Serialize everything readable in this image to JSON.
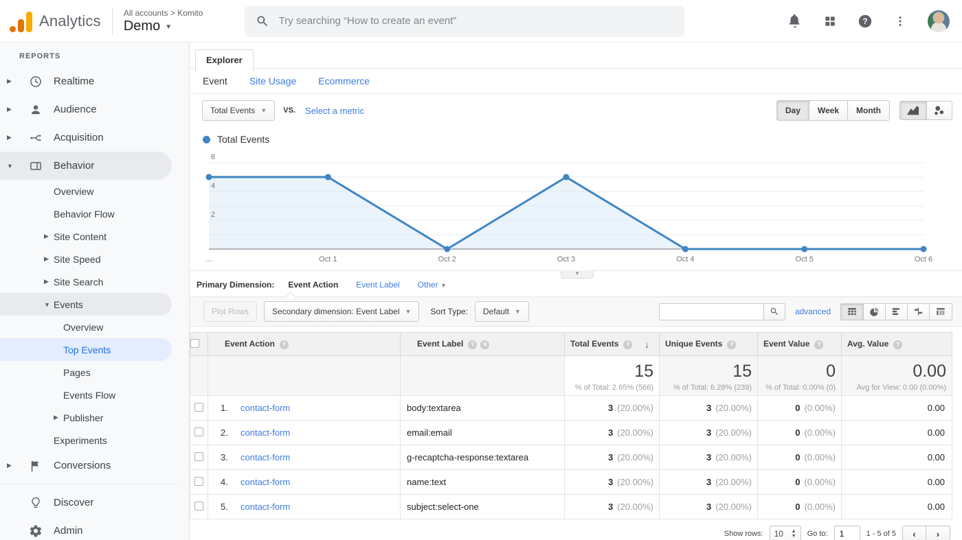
{
  "header": {
    "product": "Analytics",
    "breadcrumb": "All accounts > Komito",
    "account": "Demo",
    "search_placeholder": "Try searching “How to create an event”"
  },
  "sidebar": {
    "section_label": "REPORTS",
    "items": [
      {
        "label": "Realtime",
        "icon": "clock",
        "level": 0,
        "expand": "right"
      },
      {
        "label": "Audience",
        "icon": "person",
        "level": 0,
        "expand": "right"
      },
      {
        "label": "Acquisition",
        "icon": "share",
        "level": 0,
        "expand": "right"
      },
      {
        "label": "Behavior",
        "icon": "layout",
        "level": 0,
        "expand": "down",
        "pill": "gray"
      },
      {
        "label": "Overview",
        "level": 1
      },
      {
        "label": "Behavior Flow",
        "level": 1
      },
      {
        "label": "Site Content",
        "level": 1,
        "expand": "right"
      },
      {
        "label": "Site Speed",
        "level": 1,
        "expand": "right"
      },
      {
        "label": "Site Search",
        "level": 1,
        "expand": "right"
      },
      {
        "label": "Events",
        "level": 1,
        "expand": "down",
        "pill": "gray"
      },
      {
        "label": "Overview",
        "level": 2
      },
      {
        "label": "Top Events",
        "level": 2,
        "pill": "blue"
      },
      {
        "label": "Pages",
        "level": 2
      },
      {
        "label": "Events Flow",
        "level": 2
      },
      {
        "label": "Publisher",
        "level": 2,
        "expand": "right"
      },
      {
        "label": "Experiments",
        "level": 1
      },
      {
        "label": "Conversions",
        "icon": "flag",
        "level": 0,
        "expand": "right"
      },
      {
        "divider": true
      },
      {
        "label": "Discover",
        "icon": "bulb",
        "level": 0
      },
      {
        "label": "Admin",
        "icon": "gear",
        "level": 0
      }
    ]
  },
  "tabs": {
    "explorer": "Explorer"
  },
  "subnav": {
    "event": "Event",
    "site_usage": "Site Usage",
    "ecommerce": "Ecommerce"
  },
  "metric_bar": {
    "metric": "Total Events",
    "vs_label": "VS.",
    "select_metric": "Select a metric",
    "granularity": {
      "day": "Day",
      "week": "Week",
      "month": "Month",
      "active": "Day"
    }
  },
  "chart_data": {
    "type": "line",
    "legend": "Total Events",
    "x": [
      "...",
      "Oct 1",
      "Oct 2",
      "Oct 3",
      "Oct 4",
      "Oct 5",
      "Oct 6"
    ],
    "values": [
      5,
      5,
      0,
      5,
      0,
      0,
      0
    ],
    "yticks": [
      2,
      4,
      6
    ],
    "ylim": [
      0,
      6.67
    ],
    "grid": true,
    "legend_position": "top-left",
    "line_color": "#3f84c5",
    "area_color": "#dbe9f7"
  },
  "dimension_bar": {
    "label": "Primary Dimension:",
    "active": "Event Action",
    "link1": "Event Label",
    "link2": "Other"
  },
  "toolbar": {
    "plot_rows": "Plot Rows",
    "secondary_dimension": "Secondary dimension: Event Label",
    "sort_type_label": "Sort Type:",
    "sort_type": "Default",
    "search_value": "",
    "advanced": "advanced"
  },
  "table": {
    "columns": {
      "action": "Event Action",
      "label": "Event Label",
      "total": "Total Events",
      "unique": "Unique Events",
      "value": "Event Value",
      "avg": "Avg. Value"
    },
    "totals": {
      "total": {
        "value": "15",
        "note": "% of Total: 2.65% (566)"
      },
      "unique": {
        "value": "15",
        "note": "% of Total: 6.28% (239)"
      },
      "value": {
        "value": "0",
        "note": "% of Total: 0.00% (0)"
      },
      "avg": {
        "value": "0.00",
        "note": "Avg for View: 0.00 (0.00%)"
      }
    },
    "rows": [
      {
        "rank": "1.",
        "action": "contact-form",
        "label": "body:textarea",
        "total": "3",
        "total_pct": "(20.00%)",
        "unique": "3",
        "unique_pct": "(20.00%)",
        "value": "0",
        "value_pct": "(0.00%)",
        "avg": "0.00"
      },
      {
        "rank": "2.",
        "action": "contact-form",
        "label": "email:email",
        "total": "3",
        "total_pct": "(20.00%)",
        "unique": "3",
        "unique_pct": "(20.00%)",
        "value": "0",
        "value_pct": "(0.00%)",
        "avg": "0.00"
      },
      {
        "rank": "3.",
        "action": "contact-form",
        "label": "g-recaptcha-response:textarea",
        "total": "3",
        "total_pct": "(20.00%)",
        "unique": "3",
        "unique_pct": "(20.00%)",
        "value": "0",
        "value_pct": "(0.00%)",
        "avg": "0.00"
      },
      {
        "rank": "4.",
        "action": "contact-form",
        "label": "name:text",
        "total": "3",
        "total_pct": "(20.00%)",
        "unique": "3",
        "unique_pct": "(20.00%)",
        "value": "0",
        "value_pct": "(0.00%)",
        "avg": "0.00"
      },
      {
        "rank": "5.",
        "action": "contact-form",
        "label": "subject:select-one",
        "total": "3",
        "total_pct": "(20.00%)",
        "unique": "3",
        "unique_pct": "(20.00%)",
        "value": "0",
        "value_pct": "(0.00%)",
        "avg": "0.00"
      }
    ]
  },
  "footer": {
    "show_rows_label": "Show rows:",
    "show_rows_value": "10",
    "goto_label": "Go to:",
    "goto_value": "1",
    "range_text": "1 - 5 of 5"
  }
}
